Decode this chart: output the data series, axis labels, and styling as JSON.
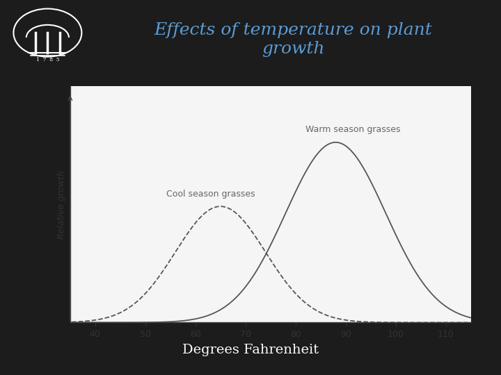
{
  "title": "Effects of temperature on plant\ngrowth",
  "title_color": "#5b9bd5",
  "xlabel": "Degrees Fahrenheit",
  "ylabel": "Relative growth",
  "background_color": "#1c1c1c",
  "plot_bg_color": "#f5f5f5",
  "x_ticks": [
    40,
    50,
    60,
    70,
    80,
    90,
    100,
    110
  ],
  "xlim": [
    35,
    115
  ],
  "ylim": [
    0,
    1.18
  ],
  "cool_label": "Cool season grasses",
  "warm_label": "Warm season grasses",
  "cool_mean": 65,
  "cool_std": 9,
  "warm_mean": 88,
  "warm_std": 10,
  "cool_peak": 0.58,
  "warm_peak": 0.9,
  "line_color": "#555555",
  "title_fontsize": 18,
  "label_fontsize": 9,
  "tick_fontsize": 9,
  "ylabel_fontsize": 9,
  "xlabel_fontsize": 14
}
